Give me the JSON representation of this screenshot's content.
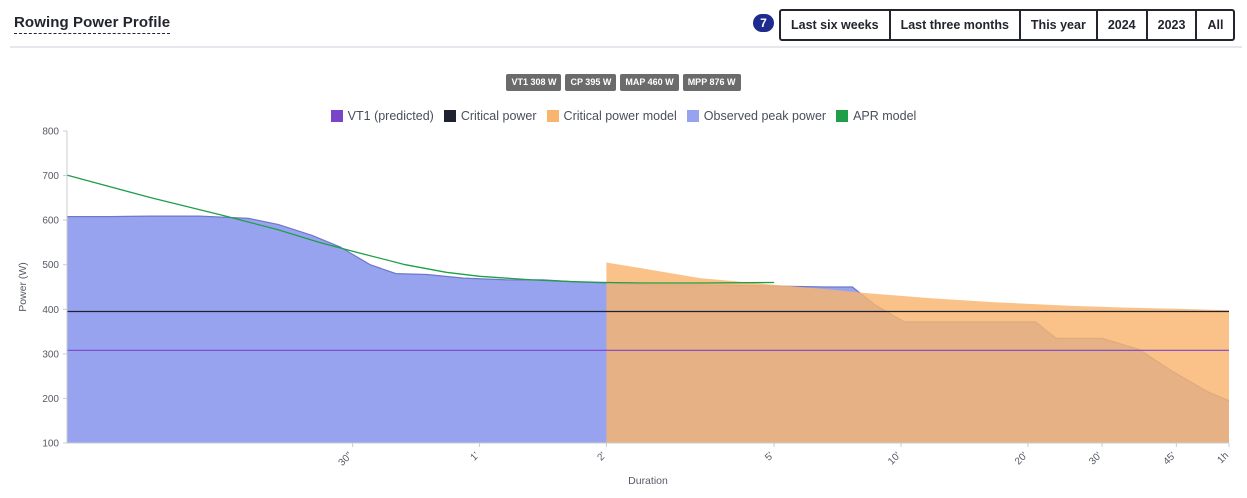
{
  "header": {
    "title": "Rowing Power Profile",
    "badge_count": "7",
    "ranges": [
      "Last six weeks",
      "Last three months",
      "This year",
      "2024",
      "2023",
      "All"
    ]
  },
  "chips": [
    "VT1 308 W",
    "CP 395 W",
    "MAP 460 W",
    "MPP 876 W"
  ],
  "legend": [
    {
      "label": "VT1 (predicted)",
      "color": "#7b45c9"
    },
    {
      "label": "Critical power",
      "color": "#1d2130"
    },
    {
      "label": "Critical power model",
      "color": "#f9b46e"
    },
    {
      "label": "Observed peak power",
      "color": "#98a3f0"
    },
    {
      "label": "APR model",
      "color": "#1f9e49"
    }
  ],
  "chart_data": {
    "type": "area",
    "x_scale": "log",
    "xlabel": "Duration",
    "ylabel": "Power (W)",
    "ylim": [
      100,
      800
    ],
    "xlim_seconds": [
      6.3,
      3600
    ],
    "y_ticks": [
      100,
      200,
      300,
      400,
      500,
      600,
      700,
      800
    ],
    "x_ticks": [
      {
        "seconds": 30,
        "label": "30\""
      },
      {
        "seconds": 60,
        "label": "1'"
      },
      {
        "seconds": 120,
        "label": "2'"
      },
      {
        "seconds": 300,
        "label": "5'"
      },
      {
        "seconds": 600,
        "label": "10'"
      },
      {
        "seconds": 1200,
        "label": "20'"
      },
      {
        "seconds": 1800,
        "label": "30'"
      },
      {
        "seconds": 2700,
        "label": "45'"
      },
      {
        "seconds": 3600,
        "label": "1h"
      }
    ],
    "grid": false,
    "legend_position": "top-center",
    "series": [
      {
        "name": "Observed peak power",
        "kind": "area",
        "color": "#98a3f0",
        "stroke": "#6e78c8",
        "points": [
          [
            6.3,
            608
          ],
          [
            8,
            608
          ],
          [
            10,
            609
          ],
          [
            13,
            609
          ],
          [
            17,
            604
          ],
          [
            20,
            590
          ],
          [
            24,
            566
          ],
          [
            28,
            540
          ],
          [
            33,
            500
          ],
          [
            38,
            480
          ],
          [
            45,
            478
          ],
          [
            55,
            470
          ],
          [
            70,
            466
          ],
          [
            85,
            466
          ],
          [
            100,
            462
          ],
          [
            120,
            459
          ],
          [
            150,
            455
          ],
          [
            200,
            455
          ],
          [
            300,
            452
          ],
          [
            400,
            450
          ],
          [
            460,
            450
          ],
          [
            520,
            410
          ],
          [
            610,
            372
          ],
          [
            900,
            372
          ],
          [
            1250,
            372
          ],
          [
            1400,
            335
          ],
          [
            1800,
            335
          ],
          [
            2200,
            310
          ],
          [
            2600,
            265
          ],
          [
            3200,
            215
          ],
          [
            3600,
            195
          ]
        ]
      },
      {
        "name": "Critical power model",
        "kind": "area",
        "color": "#f9b46e",
        "points": [
          [
            120,
            505
          ],
          [
            150,
            490
          ],
          [
            200,
            470
          ],
          [
            300,
            455
          ],
          [
            400,
            445
          ],
          [
            500,
            436
          ],
          [
            700,
            425
          ],
          [
            1000,
            416
          ],
          [
            1500,
            408
          ],
          [
            2000,
            404
          ],
          [
            2700,
            401
          ],
          [
            3600,
            398
          ]
        ]
      },
      {
        "name": "APR model",
        "kind": "line",
        "color": "#1f9e49",
        "points": [
          [
            6.3,
            701
          ],
          [
            10,
            650
          ],
          [
            15,
            609
          ],
          [
            20,
            578
          ],
          [
            25,
            550
          ],
          [
            30,
            530
          ],
          [
            40,
            500
          ],
          [
            50,
            483
          ],
          [
            60,
            474
          ],
          [
            80,
            466
          ],
          [
            100,
            462
          ],
          [
            120,
            460
          ],
          [
            150,
            459
          ],
          [
            200,
            459
          ],
          [
            300,
            460
          ]
        ]
      },
      {
        "name": "Critical power",
        "kind": "hline",
        "color": "#1d2130",
        "value": 395
      },
      {
        "name": "VT1 (predicted)",
        "kind": "hline",
        "color": "#7b45c9",
        "value": 308
      }
    ]
  }
}
